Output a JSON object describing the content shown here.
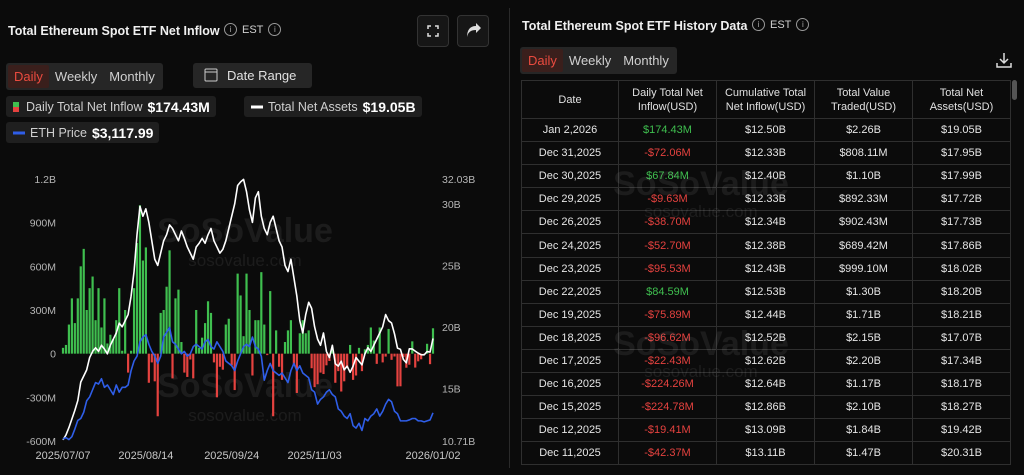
{
  "chart_data": {
    "type": "combo",
    "title": "Total Ethereum Spot ETF Net Inflow",
    "categories": [
      "2025/07/07",
      null,
      null,
      null,
      null,
      null,
      null,
      null,
      null,
      null,
      null,
      null,
      null,
      null,
      null,
      null,
      null,
      null,
      null,
      null,
      null,
      null,
      null,
      null,
      null,
      null,
      null,
      null,
      "2025/08/14",
      null,
      null,
      null,
      null,
      null,
      null,
      null,
      null,
      null,
      null,
      null,
      null,
      null,
      null,
      null,
      null,
      null,
      null,
      null,
      null,
      null,
      null,
      null,
      null,
      null,
      null,
      null,
      null,
      "2025/09/24",
      null,
      null,
      null,
      null,
      null,
      null,
      null,
      null,
      null,
      null,
      null,
      null,
      null,
      null,
      null,
      null,
      null,
      null,
      null,
      null,
      null,
      null,
      null,
      null,
      null,
      null,
      null,
      "2025/11/03",
      null,
      null,
      null,
      null,
      null,
      null,
      null,
      null,
      null,
      null,
      null,
      null,
      null,
      null,
      null,
      null,
      null,
      null,
      null,
      null,
      null,
      null,
      null,
      null,
      null,
      null,
      null,
      null,
      null,
      null,
      null,
      null,
      null,
      null,
      null,
      null,
      null,
      null,
      null,
      "2026/01/02"
    ],
    "ylim": [
      -600,
      1200
    ],
    "yticks": [
      {
        "value": 1200,
        "label": "1.2B"
      },
      {
        "value": 900,
        "label": "900M"
      },
      {
        "value": 600,
        "label": "600M"
      },
      {
        "value": 300,
        "label": "300M"
      },
      0,
      {
        "value": -300,
        "label": "-300M"
      },
      {
        "value": -600,
        "label": "-600M"
      }
    ],
    "y2lim": [
      10.71,
      32.03
    ],
    "y2ticks": [
      {
        "value": 32.03,
        "label": "32.03B"
      },
      {
        "value": 30,
        "label": "30B"
      },
      {
        "value": 25,
        "label": "25B"
      },
      {
        "value": 20,
        "label": "20B"
      },
      {
        "value": 15,
        "label": "15B"
      },
      {
        "value": 10.71,
        "label": "10.71B"
      }
    ],
    "y3lim": [
      2530,
      8000
    ],
    "series": [
      {
        "name": "Daily Total Net Inflow",
        "type": "bar",
        "color": "#3fbf4f",
        "negative_color": "#e5423f",
        "latest_label": "$174.43M",
        "values": [
          40,
          60,
          200,
          380,
          210,
          380,
          600,
          720,
          300,
          450,
          530,
          230,
          450,
          180,
          380,
          70,
          130,
          100,
          230,
          450,
          20,
          300,
          -130,
          20,
          450,
          760,
          1020,
          640,
          730,
          -200,
          -60,
          -190,
          -430,
          280,
          300,
          460,
          710,
          -170,
          380,
          440,
          80,
          -130,
          -160,
          -40,
          -170,
          300,
          40,
          110,
          210,
          360,
          280,
          -60,
          -300,
          -90,
          -110,
          200,
          240,
          -80,
          -250,
          550,
          400,
          120,
          550,
          300,
          -150,
          230,
          230,
          560,
          200,
          -10,
          430,
          -430,
          160,
          -90,
          -180,
          80,
          160,
          230,
          -80,
          -270,
          140,
          230,
          140,
          160,
          -100,
          -230,
          -210,
          -130,
          -140,
          -80,
          -50,
          30,
          -200,
          -120,
          -260,
          -190,
          -90,
          60,
          -180,
          -150,
          40,
          -120,
          30,
          60,
          180,
          90,
          -70,
          180,
          -60,
          -20,
          170,
          -42.37,
          -19.41,
          -224.78,
          -224.26,
          -22.43,
          -96.62,
          -75.89,
          84.59,
          -95.53,
          -52.7,
          -38.7,
          -9.63,
          67.84,
          -72.06,
          174.43
        ]
      },
      {
        "name": "Total Net Assets",
        "type": "line",
        "axis": "y2",
        "color": "#ffffff",
        "latest_label": "$19.05B",
        "values": [
          10.8,
          11.2,
          11.8,
          12.5,
          13.2,
          14.0,
          15.5,
          16.0,
          16.5,
          17.5,
          18.0,
          18.3,
          18.0,
          18.5,
          18.2,
          17.8,
          18.5,
          19.0,
          19.5,
          20.3,
          20.0,
          20.5,
          21.0,
          22.5,
          24.5,
          27.5,
          29.8,
          29.0,
          29.6,
          28.5,
          27.0,
          25.5,
          25.0,
          26.0,
          27.0,
          27.5,
          28.3,
          28.0,
          27.5,
          27.0,
          27.8,
          27.2,
          26.5,
          26.0,
          25.5,
          26.5,
          26.8,
          27.2,
          26.8,
          27.5,
          28.0,
          27.0,
          26.5,
          26.0,
          26.3,
          27.0,
          28.0,
          29.0,
          30.0,
          31.5,
          31.8,
          32.0,
          31.0,
          29.5,
          28.5,
          30.5,
          31.0,
          29.0,
          28.0,
          27.5,
          28.5,
          29.0,
          28.0,
          27.0,
          26.5,
          25.0,
          24.5,
          25.5,
          24.0,
          22.5,
          20.5,
          19.5,
          21.0,
          22.0,
          21.5,
          20.0,
          19.0,
          18.5,
          19.5,
          18.0,
          17.5,
          18.5,
          17.0,
          16.8,
          17.2,
          16.5,
          16.8,
          16.3,
          16.8,
          17.5,
          17.2,
          16.9,
          17.8,
          18.3,
          18.0,
          18.5,
          19.0,
          19.5,
          20.0,
          21.0,
          20.5,
          20.31,
          19.42,
          18.27,
          18.17,
          17.34,
          17.07,
          18.21,
          18.2,
          18.02,
          17.86,
          17.73,
          17.72,
          17.99,
          17.95,
          19.05
        ]
      },
      {
        "name": "ETH Price",
        "type": "line",
        "axis": "y3",
        "color": "#2f5ee8",
        "latest_label": "$3,117.99",
        "values": [
          2570,
          2600,
          2560,
          2620,
          2780,
          2960,
          3000,
          3130,
          3370,
          3450,
          3600,
          3750,
          3720,
          3830,
          3650,
          3700,
          3600,
          3500,
          3700,
          3550,
          3650,
          3650,
          3700,
          4000,
          4200,
          4300,
          4600,
          4700,
          4750,
          4550,
          4400,
          4300,
          4150,
          4300,
          4700,
          4800,
          4900,
          4600,
          4550,
          4450,
          4350,
          4400,
          4300,
          4350,
          4500,
          4550,
          4500,
          4450,
          4600,
          4650,
          4500,
          4450,
          4600,
          4500,
          4400,
          4200,
          4150,
          4100,
          4000,
          4200,
          4350,
          4500,
          4550,
          4500,
          4700,
          4500,
          4450,
          4300,
          3800,
          4000,
          4150,
          4000,
          3950,
          3900,
          3950,
          3850,
          3750,
          4000,
          4150,
          4000,
          4100,
          3950,
          3900,
          3850,
          3600,
          3550,
          3300,
          3400,
          3450,
          3550,
          3600,
          3500,
          3450,
          3200,
          3150,
          3050,
          3000,
          3100,
          2850,
          2800,
          2900,
          2750,
          3000,
          2950,
          3050,
          3100,
          3200,
          3050,
          3150,
          3300,
          3400,
          3350,
          3150,
          3100,
          2950,
          2950,
          2950,
          2970,
          3000,
          3000,
          2950,
          2950,
          2930,
          2950,
          2970,
          3117.99
        ]
      }
    ]
  },
  "left_panel": {
    "timezone": "EST",
    "tabs": [
      "Daily",
      "Weekly",
      "Monthly"
    ],
    "date_range": "Date Range"
  },
  "watermark": {
    "brand": "SoSoValue",
    "site": "sosovalue.com"
  },
  "right_panel": {
    "title": "Total Ethereum Spot ETF History Data",
    "timezone": "EST",
    "tabs": [
      "Daily",
      "Weekly",
      "Monthly"
    ],
    "table": {
      "columns": [
        "Date",
        "Daily Total Net Inflow(USD)",
        "Cumulative Total Net Inflow(USD)",
        "Total Value Traded(USD)",
        "Total Net Assets(USD)"
      ],
      "rows": [
        [
          "Jan 2,2026",
          "$174.43M",
          "$12.50B",
          "$2.26B",
          "$19.05B"
        ],
        [
          "Dec 31,2025",
          "-$72.06M",
          "$12.33B",
          "$808.11M",
          "$17.95B"
        ],
        [
          "Dec 30,2025",
          "$67.84M",
          "$12.40B",
          "$1.10B",
          "$17.99B"
        ],
        [
          "Dec 29,2025",
          "-$9.63M",
          "$12.33B",
          "$892.33M",
          "$17.72B"
        ],
        [
          "Dec 26,2025",
          "-$38.70M",
          "$12.34B",
          "$902.43M",
          "$17.73B"
        ],
        [
          "Dec 24,2025",
          "-$52.70M",
          "$12.38B",
          "$689.42M",
          "$17.86B"
        ],
        [
          "Dec 23,2025",
          "-$95.53M",
          "$12.43B",
          "$999.10M",
          "$18.02B"
        ],
        [
          "Dec 22,2025",
          "$84.59M",
          "$12.53B",
          "$1.30B",
          "$18.20B"
        ],
        [
          "Dec 19,2025",
          "-$75.89M",
          "$12.44B",
          "$1.71B",
          "$18.21B"
        ],
        [
          "Dec 18,2025",
          "-$96.62M",
          "$12.52B",
          "$2.15B",
          "$17.07B"
        ],
        [
          "Dec 17,2025",
          "-$22.43M",
          "$12.62B",
          "$2.20B",
          "$17.34B"
        ],
        [
          "Dec 16,2025",
          "-$224.26M",
          "$12.64B",
          "$1.17B",
          "$18.17B"
        ],
        [
          "Dec 15,2025",
          "-$224.78M",
          "$12.86B",
          "$2.10B",
          "$18.27B"
        ],
        [
          "Dec 12,2025",
          "-$19.41M",
          "$13.09B",
          "$1.84B",
          "$19.42B"
        ],
        [
          "Dec 11,2025",
          "-$42.37M",
          "$13.11B",
          "$1.47B",
          "$20.31B"
        ]
      ]
    }
  }
}
